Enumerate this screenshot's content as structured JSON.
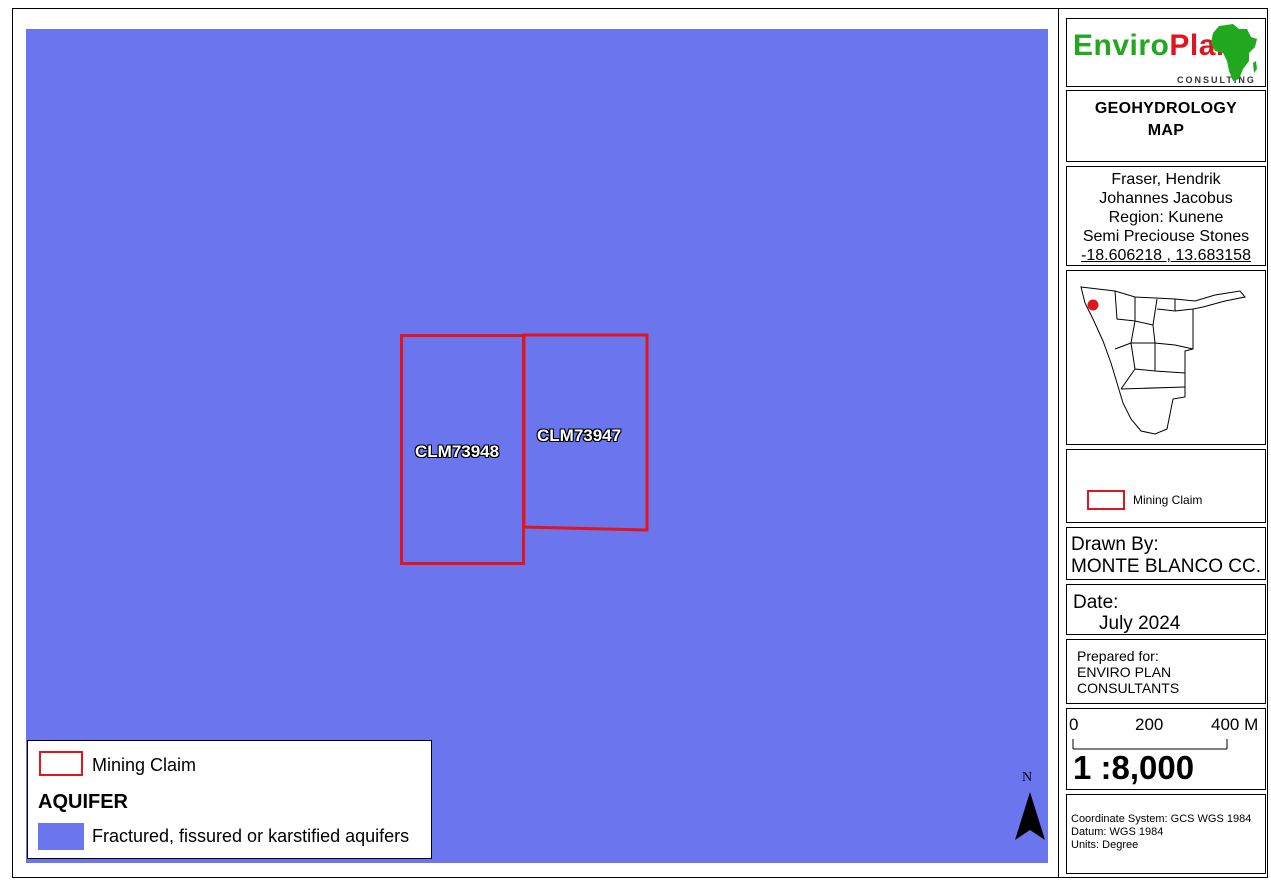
{
  "map": {
    "claims": [
      {
        "id": "CLM73948"
      },
      {
        "id": "CLM73947"
      }
    ]
  },
  "legend": {
    "claim_label": "Mining Claim",
    "aquifer_title": "AQUIFER",
    "aquifer_label": "Fractured, fissured or karstified aquifers"
  },
  "north_arrow": {
    "label": "N"
  },
  "colors": {
    "aquifer_fill": "#6b76ee",
    "claim_outline": "#e0161e",
    "logo_green": "#22a81e",
    "logo_red": "#e0161e"
  },
  "sidebar": {
    "logo": {
      "part1": "Enviro",
      "part2": "Plan",
      "sub": "CONSULTING"
    },
    "title": {
      "line1": "GEOHYDROLOGY",
      "line2": "MAP"
    },
    "info": {
      "line1": "Fraser, Hendrik",
      "line2": "Johannes Jacobus",
      "line3": "Region: Kunene",
      "line4": "Semi Preciouse Stones",
      "line5": "-18.606218 , 13.683158"
    },
    "legend_claim_label": "Mining Claim",
    "drawn_by": {
      "label": "Drawn By:",
      "value": "MONTE BLANCO CC."
    },
    "date": {
      "label": "Date:",
      "value": "July  2024"
    },
    "prepared": {
      "label": "Prepared for:",
      "line1": "ENVIRO PLAN",
      "line2": "CONSULTANTS"
    },
    "scale": {
      "tick0": "0",
      "tick1": "200",
      "tick2": "400 M",
      "ratio": "1 :8,000"
    },
    "coords": {
      "system": "Coordinate System: GCS WGS 1984",
      "datum": "Datum: WGS 1984",
      "units": "Units: Degree"
    }
  }
}
